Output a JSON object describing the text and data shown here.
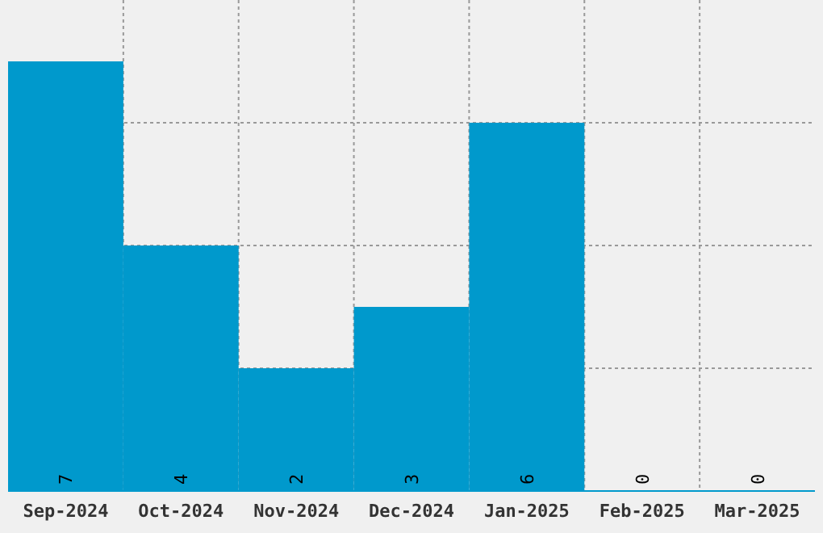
{
  "chart_data": {
    "type": "bar",
    "categories": [
      "Sep-2024",
      "Oct-2024",
      "Nov-2024",
      "Dec-2024",
      "Jan-2025",
      "Feb-2025",
      "Mar-2025"
    ],
    "values": [
      7,
      4,
      2,
      3,
      6,
      0,
      0
    ],
    "color": "#0099cc",
    "ylim": [
      0,
      8
    ],
    "yticks": [
      {
        "value": 2,
        "label": null
      },
      {
        "value": 4,
        "label": null
      },
      {
        "value": 6,
        "label": null
      }
    ],
    "tick_labels": "x",
    "grid": true,
    "data_labels": true
  }
}
